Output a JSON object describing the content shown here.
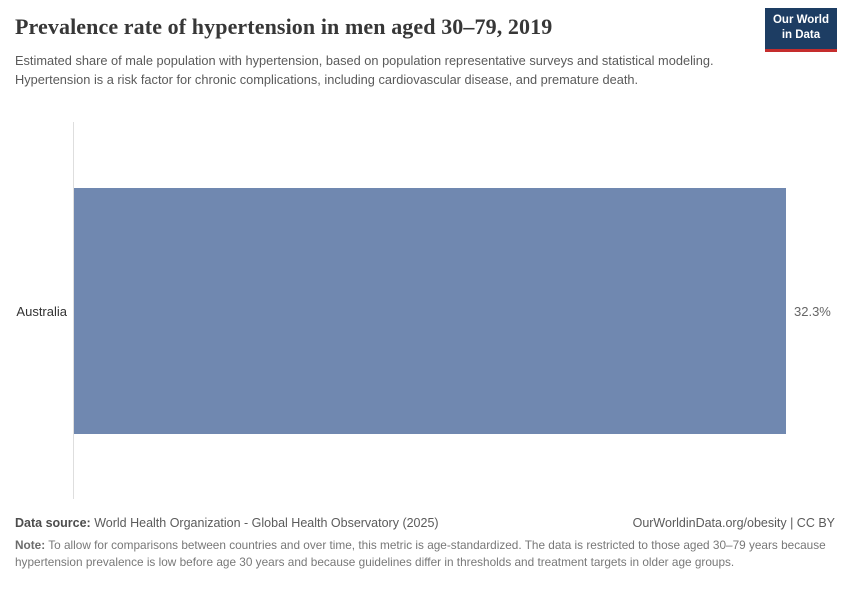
{
  "header": {
    "title": "Prevalence rate of hypertension in men aged 30–79, 2019",
    "subtitle": "Estimated share of male population with hypertension, based on population representative surveys and statistical modeling. Hypertension is a risk factor for chronic complications, including cardiovascular disease, and premature death.",
    "logo": {
      "line1": "Our World",
      "line2": "in Data",
      "bg_color": "#1d3d63",
      "stripe_color": "#c52d2d"
    }
  },
  "chart_data": {
    "type": "bar",
    "orientation": "horizontal",
    "title": "Prevalence rate of hypertension in men aged 30–79, 2019",
    "categories": [
      "Australia"
    ],
    "values": [
      32.3
    ],
    "value_labels": [
      "32.3%"
    ],
    "unit": "%",
    "xlim": [
      0,
      32.3
    ],
    "bar_color": "#7088b0",
    "grid": false,
    "legend": "none"
  },
  "footer": {
    "source_label": "Data source:",
    "source_text": " World Health Organization - Global Health Observatory (2025)",
    "license_text": "OurWorldinData.org/obesity | CC BY",
    "note_label": "Note:",
    "note_text": " To allow for comparisons between countries and over time, this metric is age-standardized. The data is restricted to those aged 30–79 years because hypertension prevalence is low before age 30 years and because guidelines differ in thresholds and treatment targets in older age groups."
  }
}
